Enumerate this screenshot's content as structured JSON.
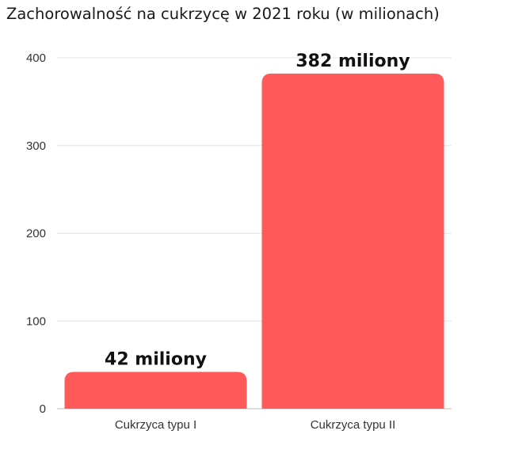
{
  "chart_data": {
    "type": "bar",
    "title": "Zachorowalność na cukrzycę w 2021 roku (w milionach)",
    "xlabel": "",
    "ylabel": "",
    "categories": [
      "Cukrzyca typu I",
      "Cukrzyca typu II"
    ],
    "values": [
      42,
      382
    ],
    "data_labels": [
      "42 miliony",
      "382 miliony"
    ],
    "yticks": [
      "0",
      "100",
      "200",
      "300",
      "400"
    ],
    "ylim": [
      0,
      400
    ],
    "grid": true,
    "legend": "none",
    "bar_color": "#FF5A5A"
  }
}
